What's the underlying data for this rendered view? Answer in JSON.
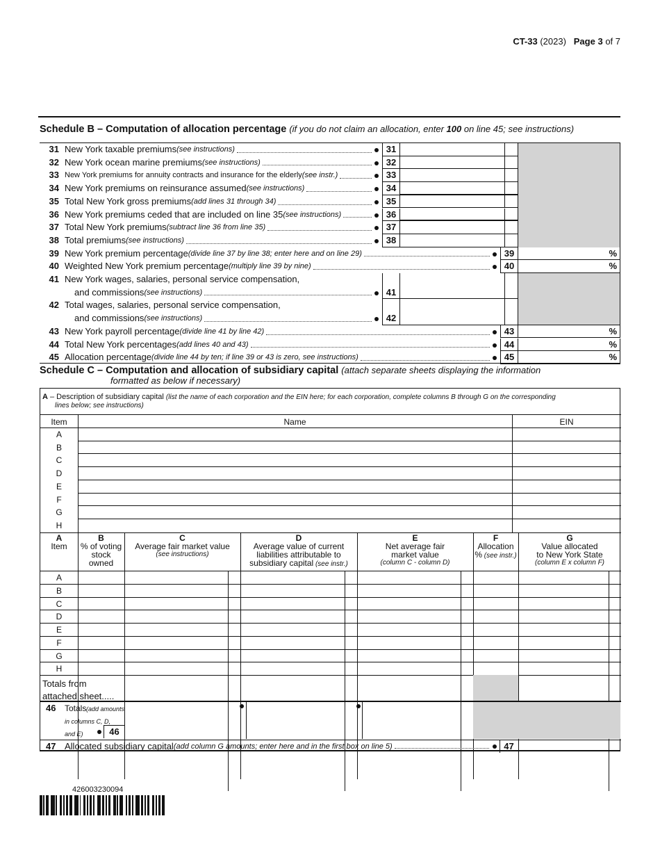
{
  "header": {
    "form": "CT-33",
    "year": "(2023)",
    "page": "Page 3",
    "of": "of 7"
  },
  "scheduleB": {
    "title": "Schedule B – Computation of allocation percentage",
    "note_pre": "(if you do not claim an allocation, enter ",
    "note_bold": "100",
    "note_post": " on line 45; see instructions)",
    "lines": [
      {
        "num": "31",
        "label": "New York taxable premiums",
        "note": "(see instructions)",
        "type": "amount"
      },
      {
        "num": "32",
        "label": "New York ocean marine premiums",
        "note": "(see instructions)",
        "type": "amount"
      },
      {
        "num": "33",
        "label": "New York premiums for annuity contracts and insurance for the elderly",
        "note": "(see instr.)",
        "type": "amount"
      },
      {
        "num": "34",
        "label": "New York premiums on reinsurance assumed",
        "note": "(see instructions)",
        "type": "amount"
      },
      {
        "num": "35",
        "label": "Total New York gross premiums",
        "note": "(add lines 31 through 34)",
        "type": "amount"
      },
      {
        "num": "36",
        "label": "New York premiums ceded that are included on line 35",
        "note": "(see instructions)",
        "type": "amount"
      },
      {
        "num": "37",
        "label": "Total New York premiums",
        "note": "(subtract line 36 from line 35)",
        "type": "amount"
      },
      {
        "num": "38",
        "label": "Total premiums",
        "note": "(see instructions)",
        "type": "amount"
      },
      {
        "num": "39",
        "label": "New York premium percentage",
        "note": "(divide line 37 by line 38; enter here and on line 29)",
        "type": "percent"
      },
      {
        "num": "40",
        "label": "Weighted New York premium percentage",
        "note": "(multiply line 39 by nine)",
        "type": "percent"
      },
      {
        "num": "41",
        "label": "New York wages, salaries, personal service compensation,",
        "label2": "and commissions",
        "note": "(see instructions)",
        "type": "amount2"
      },
      {
        "num": "42",
        "label": "Total wages, salaries, personal service compensation,",
        "label2": "and commissions",
        "note": "(see instructions)",
        "type": "amount2"
      },
      {
        "num": "43",
        "label": "New York payroll percentage",
        "note": "(divide line 41 by line 42)",
        "type": "percent"
      },
      {
        "num": "44",
        "label": "Total New York percentages",
        "note": "(add lines 40 and 43)",
        "type": "percent"
      },
      {
        "num": "45",
        "label": "Allocation percentage",
        "note": "(divide line 44 by ten; if line 39 or 43 is zero, see instructions)",
        "type": "percent"
      }
    ],
    "percent_sign": "%"
  },
  "scheduleC": {
    "title": "Schedule C – Computation and allocation of subsidiary capital",
    "note1": "(attach separate sheets displaying the information",
    "note2": "formatted as below if necessary)",
    "descA": "A",
    "descA_label": " – Description of subsidiary capital ",
    "descA_note1": "(list the name of each corporation and the EIN here; for each corporation, complete columns B through G on the corresponding",
    "descA_note2": "lines below; see instructions)",
    "col_item": "Item",
    "col_name": "Name",
    "col_ein": "EIN",
    "items": [
      "A",
      "B",
      "C",
      "D",
      "E",
      "F",
      "G",
      "H"
    ],
    "columns": [
      {
        "letter": "A",
        "lines": [
          "Item"
        ],
        "note": ""
      },
      {
        "letter": "B",
        "lines": [
          "% of voting",
          "stock",
          "owned"
        ],
        "note": ""
      },
      {
        "letter": "C",
        "lines": [
          "Average fair market value"
        ],
        "note": "(see instructions)"
      },
      {
        "letter": "D",
        "lines": [
          "Average value of current",
          "liabilities attributable to",
          "subsidiary capital"
        ],
        "note": "(see instr.)"
      },
      {
        "letter": "E",
        "lines": [
          "Net average fair",
          "market value"
        ],
        "note": "(column C - column D)"
      },
      {
        "letter": "F",
        "lines": [
          "Allocation",
          "%"
        ],
        "note": "(see instr.)"
      },
      {
        "letter": "G",
        "lines": [
          "Value allocated",
          "to New York State"
        ],
        "note": "(column E x column F)"
      }
    ],
    "totals_attached": [
      "Totals from",
      "attached sheet....."
    ],
    "line46": {
      "num": "46",
      "label": "Totals",
      "note1": "(add amounts",
      "note2": "in columns  C,  D,",
      "note3": "and E)",
      "box": "46"
    },
    "line47": {
      "num": "47",
      "label": "Allocated subsidiary capital",
      "note": "(add column G amounts; enter here and in the first box on line 5)",
      "box": "47"
    }
  },
  "barcode": {
    "number": "426003230094"
  },
  "colors": {
    "shade": "#d3d3d3",
    "ink": "#111111"
  }
}
